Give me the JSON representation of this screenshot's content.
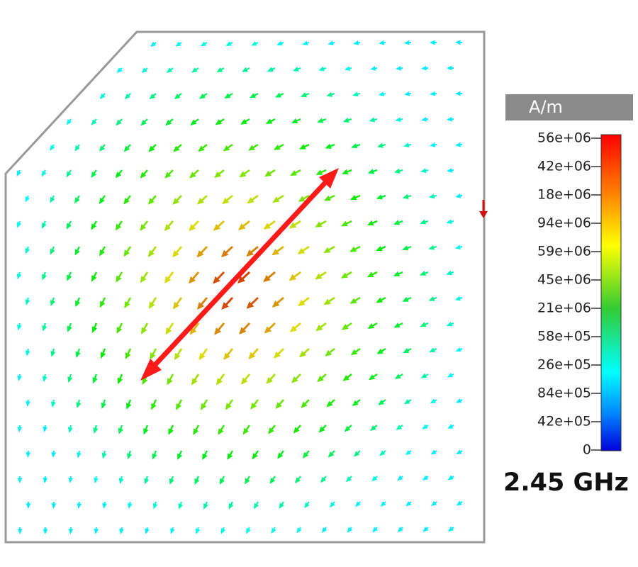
{
  "legend": {
    "unit": "A/m",
    "labels": [
      "56e+06",
      "42e+06",
      "18e+06",
      "94e+06",
      "59e+06",
      "45e+06",
      "21e+06",
      "58e+05",
      "26e+05",
      "84e+05",
      "42e+05",
      "0"
    ]
  },
  "frequency": "2.45 GHz"
}
